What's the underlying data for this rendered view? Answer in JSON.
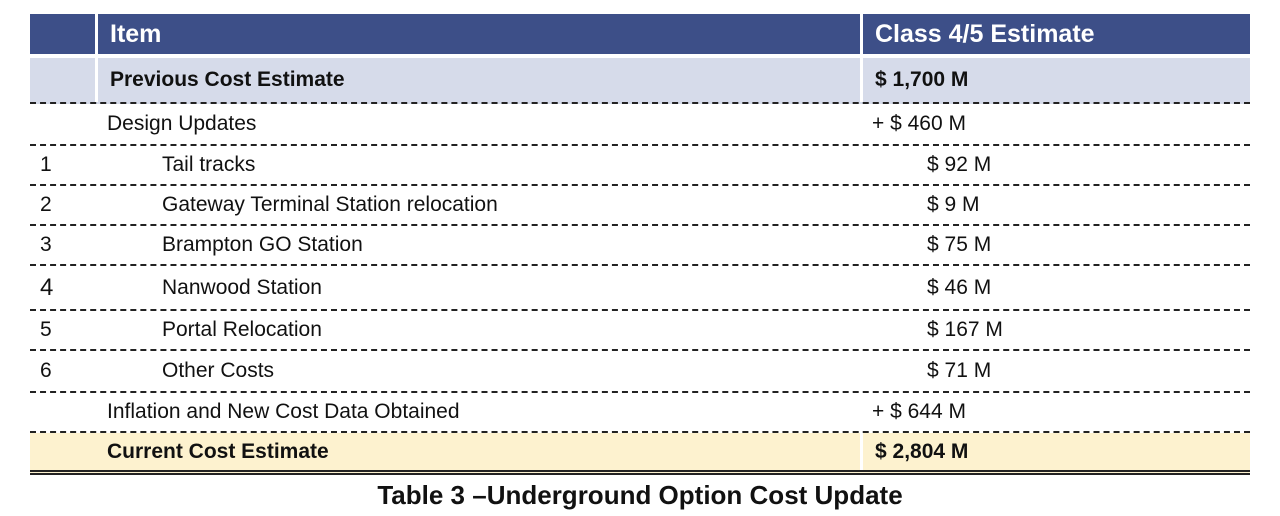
{
  "header": {
    "item": "Item",
    "estimate": "Class 4/5 Estimate"
  },
  "previous": {
    "label": "Previous Cost Estimate",
    "value": "$ 1,700 M"
  },
  "design_updates": {
    "label": "Design Updates",
    "value": "+ $ 460 M"
  },
  "items": [
    {
      "num": "1",
      "label": "Tail tracks",
      "value": "$ 92 M"
    },
    {
      "num": "2",
      "label": "Gateway Terminal Station relocation",
      "value": "$ 9 M"
    },
    {
      "num": "3",
      "label": "Brampton GO Station",
      "value": "$ 75 M"
    },
    {
      "num": "4",
      "label": "Nanwood Station",
      "value": "$ 46 M"
    },
    {
      "num": "5",
      "label": "Portal Relocation",
      "value": "$ 167 M"
    },
    {
      "num": "6",
      "label": "Other Costs",
      "value": "$ 71 M"
    }
  ],
  "inflation": {
    "label": "Inflation and New Cost Data Obtained",
    "value": "+ $ 644 M"
  },
  "current": {
    "label": "Current Cost Estimate",
    "value": "$ 2,804 M"
  },
  "caption": "Table 3 –Underground Option Cost Update",
  "colors": {
    "header_bg": "#3d4f88",
    "previous_bg": "#d6dbea",
    "current_bg": "#fdf2cf"
  }
}
